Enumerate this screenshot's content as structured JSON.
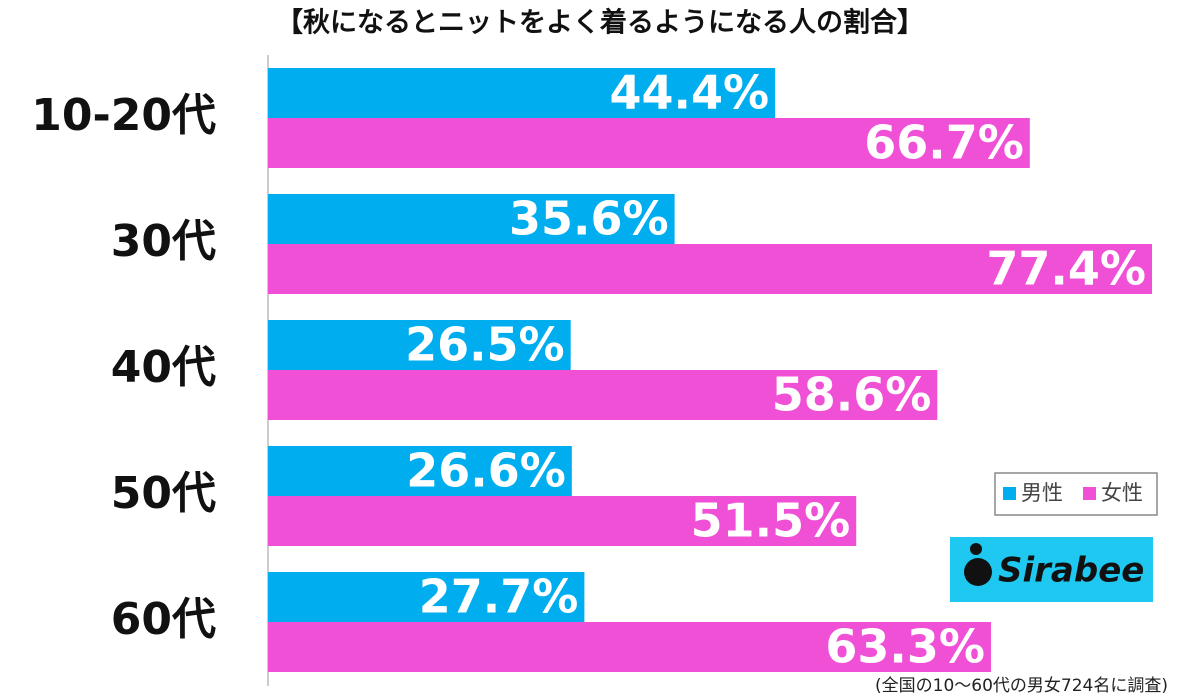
{
  "chart_data": {
    "type": "hbar",
    "title": "【秋になるとニットをよく着るようになる人の割合】",
    "categories": [
      "10-20代",
      "30代",
      "40代",
      "50代",
      "60代"
    ],
    "series": [
      {
        "name": "男性",
        "color": "#00aeef",
        "values": [
          44.4,
          35.6,
          26.5,
          26.6,
          27.7
        ],
        "value_labels": [
          "44.4%",
          "35.6%",
          "26.5%",
          "26.6%",
          "27.7%"
        ]
      },
      {
        "name": "女性",
        "color": "#f050d6",
        "values": [
          66.7,
          77.4,
          58.6,
          51.5,
          63.3
        ],
        "value_labels": [
          "66.7%",
          "77.4%",
          "58.6%",
          "51.5%",
          "63.3%"
        ]
      }
    ],
    "xlim": [
      0,
      80.9
    ],
    "legend": "right",
    "logo": "Sirabee",
    "note": "(全国の10～60代の男女724名に調査)"
  }
}
